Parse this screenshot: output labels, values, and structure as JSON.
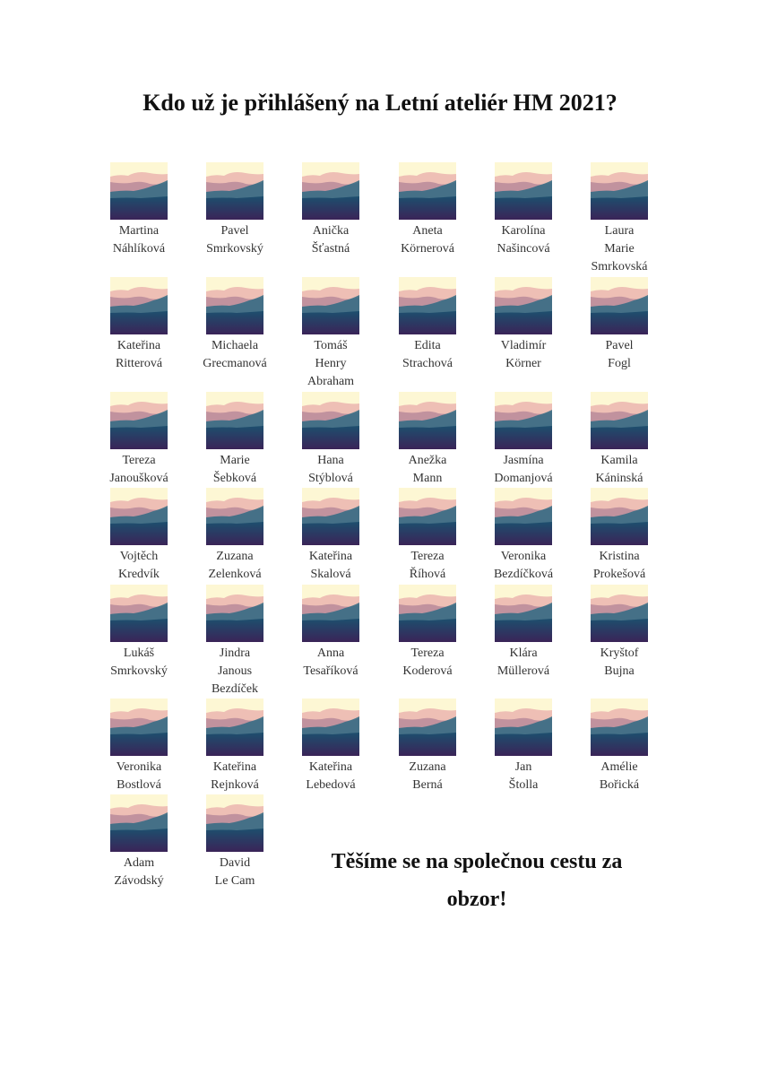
{
  "title": "Kdo už je přihlášený na Letní ateliér HM 2021?",
  "participants": [
    [
      "Martina",
      "Náhlíková"
    ],
    [
      "Pavel",
      "Smrkovský"
    ],
    [
      "Anička",
      "Šťastná"
    ],
    [
      "Aneta",
      "Körnerová"
    ],
    [
      "Karolína",
      "Našincová"
    ],
    [
      "Laura",
      "Marie",
      "Smrkovská"
    ],
    [
      "Kateřina",
      "Ritterová"
    ],
    [
      "Michaela",
      "Grecmanová"
    ],
    [
      "Tomáš",
      "Henry",
      "Abraham"
    ],
    [
      "Edita",
      "Strachová"
    ],
    [
      "Vladimír",
      "Körner"
    ],
    [
      "Pavel",
      "Fogl"
    ],
    [
      "Tereza",
      "Janoušková"
    ],
    [
      "Marie",
      "Šebková"
    ],
    [
      "Hana",
      "Stýblová"
    ],
    [
      "Anežka",
      "Mann"
    ],
    [
      "Jasmína",
      "Domanjová"
    ],
    [
      "Kamila",
      "Káninská"
    ],
    [
      "Vojtěch",
      "Kredvík"
    ],
    [
      "Zuzana",
      "Zelenková"
    ],
    [
      "Kateřina",
      "Skalová"
    ],
    [
      "Tereza",
      "Říhová"
    ],
    [
      "Veronika",
      "Bezdíčková"
    ],
    [
      "Kristina",
      "Prokešová"
    ],
    [
      "Lukáš",
      "Smrkovský"
    ],
    [
      "Jindra",
      "Janous",
      "Bezdíček"
    ],
    [
      "Anna",
      "Tesaříková"
    ],
    [
      "Tereza",
      "Koderová"
    ],
    [
      "Klára",
      "Müllerová"
    ],
    [
      "Kryštof",
      "Bujna"
    ],
    [
      "Veronika",
      "Bostlová"
    ],
    [
      "Kateřina",
      "Rejnková"
    ],
    [
      "Kateřina",
      "Lebedová"
    ],
    [
      "Zuzana",
      "Berná"
    ],
    [
      "Jan",
      "Štolla"
    ],
    [
      "Amélie",
      "Bořická"
    ],
    [
      "Adam",
      "Závodský"
    ],
    [
      "David",
      "Le Cam"
    ]
  ],
  "closing": [
    "Těšíme se na společnou cestu za",
    "obzor!"
  ],
  "colors": {
    "sky": "#fdf7d4",
    "pink": "#eebfb5",
    "mauve": "#b88a9a",
    "teal": "#2f6a82",
    "deep": "#1d4f6e",
    "purple": "#3a2458"
  }
}
